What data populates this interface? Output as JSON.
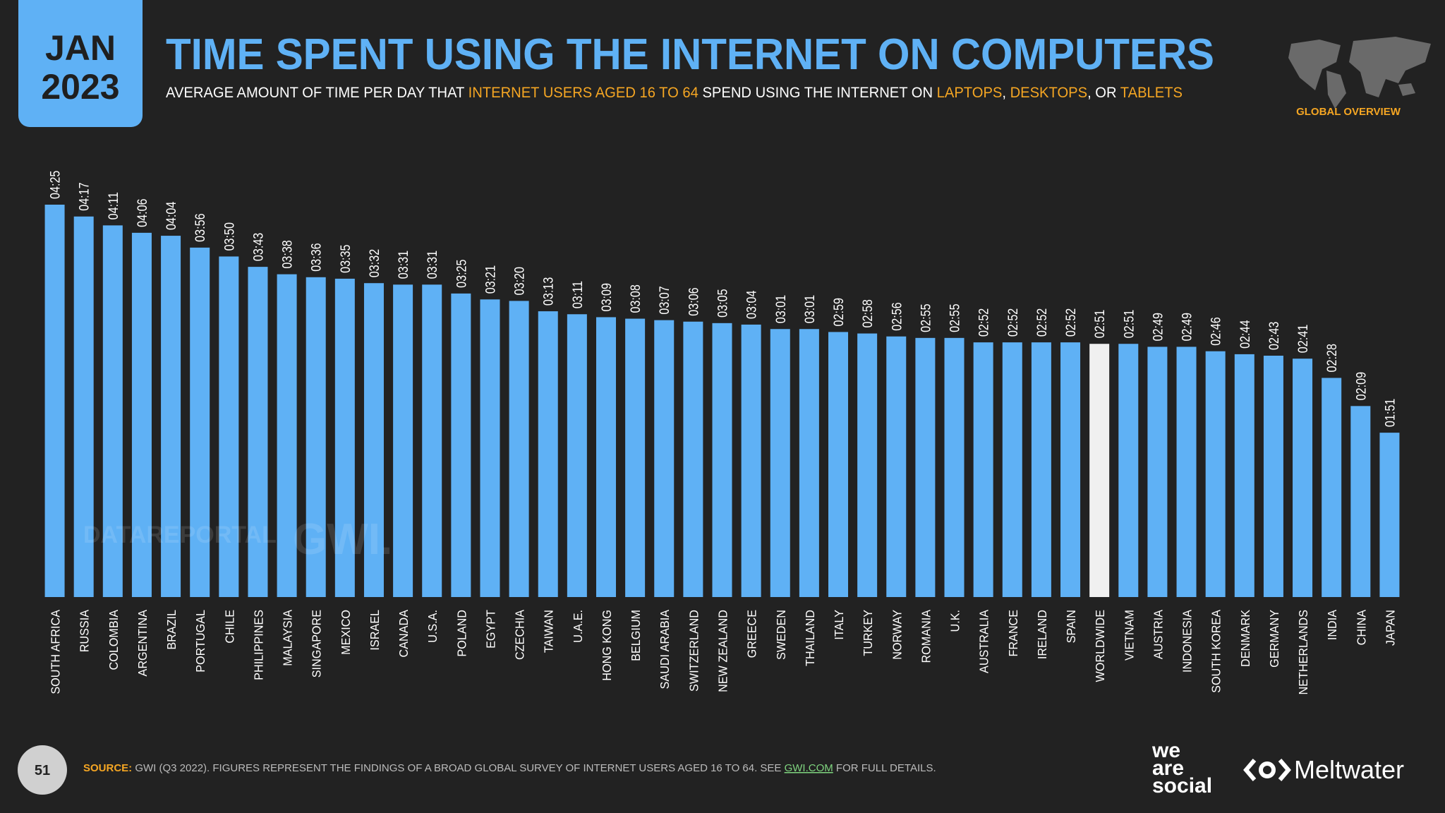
{
  "header": {
    "date_month": "JAN",
    "date_year": "2023",
    "badge": "GLOBAL OVERVIEW"
  },
  "chart_data": {
    "type": "bar",
    "title": "TIME SPENT USING THE INTERNET ON COMPUTERS",
    "subtitle": [
      {
        "text": "AVERAGE AMOUNT OF TIME PER DAY THAT ",
        "color": "#ffffff"
      },
      {
        "text": "INTERNET USERS AGED 16 TO 64",
        "color": "#f5a623"
      },
      {
        "text": " SPEND USING THE INTERNET ON ",
        "color": "#ffffff"
      },
      {
        "text": "LAPTOPS",
        "color": "#f5a623"
      },
      {
        "text": ", ",
        "color": "#ffffff"
      },
      {
        "text": "DESKTOPS",
        "color": "#f5a623"
      },
      {
        "text": ", OR ",
        "color": "#ffffff"
      },
      {
        "text": "TABLETS",
        "color": "#f5a623"
      }
    ],
    "categories": [
      "SOUTH AFRICA",
      "RUSSIA",
      "COLOMBIA",
      "ARGENTINA",
      "BRAZIL",
      "PORTUGAL",
      "CHILE",
      "PHILIPPINES",
      "MALAYSIA",
      "SINGAPORE",
      "MEXICO",
      "ISRAEL",
      "CANADA",
      "U.S.A.",
      "POLAND",
      "EGYPT",
      "CZECHIA",
      "TAIWAN",
      "U.A.E.",
      "HONG KONG",
      "BELGIUM",
      "SAUDI ARABIA",
      "SWITZERLAND",
      "NEW ZEALAND",
      "GREECE",
      "SWEDEN",
      "THAILAND",
      "ITALY",
      "TURKEY",
      "NORWAY",
      "ROMANIA",
      "U.K.",
      "AUSTRALIA",
      "FRANCE",
      "IRELAND",
      "SPAIN",
      "WORLDWIDE",
      "VIETNAM",
      "AUSTRIA",
      "INDONESIA",
      "SOUTH KOREA",
      "DENMARK",
      "GERMANY",
      "NETHERLANDS",
      "INDIA",
      "CHINA",
      "JAPAN"
    ],
    "values": [
      265,
      257,
      251,
      246,
      244,
      236,
      230,
      223,
      218,
      216,
      215,
      212,
      211,
      211,
      205,
      201,
      200,
      193,
      191,
      189,
      188,
      187,
      186,
      185,
      184,
      181,
      181,
      179,
      178,
      176,
      175,
      175,
      172,
      172,
      172,
      172,
      171,
      171,
      169,
      169,
      166,
      164,
      163,
      161,
      148,
      129,
      111
    ],
    "value_labels": [
      "04:25",
      "04:17",
      "04:11",
      "04:06",
      "04:04",
      "03:56",
      "03:50",
      "03:43",
      "03:38",
      "03:36",
      "03:35",
      "03:32",
      "03:31",
      "03:31",
      "03:25",
      "03:21",
      "03:20",
      "03:13",
      "03:11",
      "03:09",
      "03:08",
      "03:07",
      "03:06",
      "03:05",
      "03:04",
      "03:01",
      "03:01",
      "02:59",
      "02:58",
      "02:56",
      "02:55",
      "02:55",
      "02:52",
      "02:52",
      "02:52",
      "02:52",
      "02:51",
      "02:51",
      "02:49",
      "02:49",
      "02:46",
      "02:44",
      "02:43",
      "02:41",
      "02:28",
      "02:09",
      "01:51"
    ],
    "colors": [
      "#5fb1f5",
      "#5fb1f5",
      "#5fb1f5",
      "#5fb1f5",
      "#5fb1f5",
      "#5fb1f5",
      "#5fb1f5",
      "#5fb1f5",
      "#5fb1f5",
      "#5fb1f5",
      "#5fb1f5",
      "#5fb1f5",
      "#5fb1f5",
      "#5fb1f5",
      "#5fb1f5",
      "#5fb1f5",
      "#5fb1f5",
      "#5fb1f5",
      "#5fb1f5",
      "#5fb1f5",
      "#5fb1f5",
      "#5fb1f5",
      "#5fb1f5",
      "#5fb1f5",
      "#5fb1f5",
      "#5fb1f5",
      "#5fb1f5",
      "#5fb1f5",
      "#5fb1f5",
      "#5fb1f5",
      "#5fb1f5",
      "#5fb1f5",
      "#5fb1f5",
      "#5fb1f5",
      "#5fb1f5",
      "#5fb1f5",
      "#f0f0f0",
      "#5fb1f5",
      "#5fb1f5",
      "#5fb1f5",
      "#5fb1f5",
      "#5fb1f5",
      "#5fb1f5",
      "#5fb1f5",
      "#5fb1f5",
      "#5fb1f5",
      "#5fb1f5"
    ]
  },
  "watermarks": [
    "DATAREPORTAL",
    "GWI."
  ],
  "footer": {
    "page": "51",
    "source_label": "SOURCE:",
    "source_text": "GWI (Q3 2022). FIGURES REPRESENT THE FINDINGS OF A BROAD GLOBAL SURVEY OF INTERNET USERS AGED 16 TO 64. SEE ",
    "source_link": "GWI.COM",
    "source_end": " FOR FULL DETAILS.",
    "logo_1": [
      "we",
      "are",
      "social"
    ],
    "logo_2": "Meltwater"
  }
}
